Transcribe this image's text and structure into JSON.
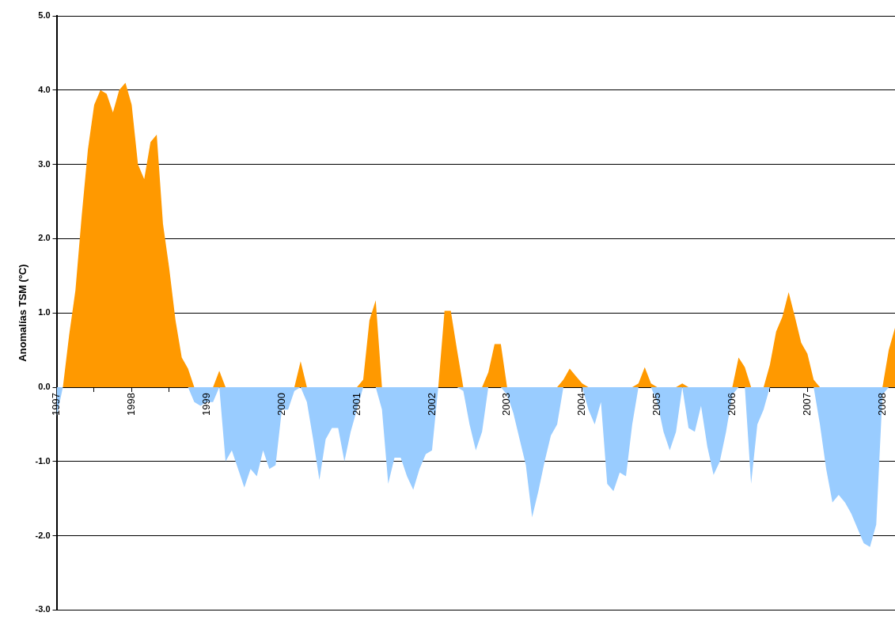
{
  "chart_data": {
    "type": "area",
    "ylabel": "Anomalías TSM (ºC)",
    "x": [
      "1997-01",
      "1997-02",
      "1997-03",
      "1997-04",
      "1997-05",
      "1997-06",
      "1997-07",
      "1997-08",
      "1997-09",
      "1997-10",
      "1997-11",
      "1997-12",
      "1998-01",
      "1998-02",
      "1998-03",
      "1998-04",
      "1998-05",
      "1998-06",
      "1998-07",
      "1998-08",
      "1998-09",
      "1998-10",
      "1998-11",
      "1998-12",
      "1999-01",
      "1999-02",
      "1999-03",
      "1999-04",
      "1999-05",
      "1999-06",
      "1999-07",
      "1999-08",
      "1999-09",
      "1999-10",
      "1999-11",
      "1999-12",
      "2000-01",
      "2000-02",
      "2000-03",
      "2000-04",
      "2000-05",
      "2000-06",
      "2000-07",
      "2000-08",
      "2000-09",
      "2000-10",
      "2000-11",
      "2000-12",
      "2001-01",
      "2001-02",
      "2001-03",
      "2001-04",
      "2001-05",
      "2001-06",
      "2001-07",
      "2001-08",
      "2001-09",
      "2001-10",
      "2001-11",
      "2001-12",
      "2002-01",
      "2002-02",
      "2002-03",
      "2002-04",
      "2002-05",
      "2002-06",
      "2002-07",
      "2002-08",
      "2002-09",
      "2002-10",
      "2002-11",
      "2002-12",
      "2003-01",
      "2003-02",
      "2003-03",
      "2003-04",
      "2003-05",
      "2003-06",
      "2003-07",
      "2003-08",
      "2003-09",
      "2003-10",
      "2003-11",
      "2003-12",
      "2004-01",
      "2004-02",
      "2004-03",
      "2004-04",
      "2004-05",
      "2004-06",
      "2004-07",
      "2004-08",
      "2004-09",
      "2004-10",
      "2004-11",
      "2004-12",
      "2005-01",
      "2005-02",
      "2005-03",
      "2005-04",
      "2005-05",
      "2005-06",
      "2005-07",
      "2005-08",
      "2005-09",
      "2005-10",
      "2005-11",
      "2005-12",
      "2006-01",
      "2006-02",
      "2006-03",
      "2006-04",
      "2006-05",
      "2006-06",
      "2006-07",
      "2006-08",
      "2006-09",
      "2006-10",
      "2006-11",
      "2006-12",
      "2007-01",
      "2007-02",
      "2007-03",
      "2007-04",
      "2007-05",
      "2007-06",
      "2007-07",
      "2007-08",
      "2007-09",
      "2007-10",
      "2007-11",
      "2007-12",
      "2008-01",
      "2008-02",
      "2008-03"
    ],
    "series": [
      {
        "color": "#ff9900",
        "values": [
          0,
          0,
          0.7,
          1.3,
          2.3,
          3.2,
          3.8,
          4.0,
          3.95,
          3.7,
          4.0,
          4.1,
          3.8,
          3.0,
          2.8,
          3.3,
          3.4,
          2.2,
          1.6,
          0.9,
          0.4,
          0.25,
          0,
          0,
          0,
          0,
          0.22,
          0,
          0,
          0,
          0,
          0,
          0,
          0,
          0,
          0,
          0,
          0,
          0,
          0.35,
          0,
          0,
          0,
          0,
          0,
          0,
          0,
          0,
          0,
          0.1,
          0.9,
          1.17,
          0,
          0,
          0,
          0,
          0,
          0,
          0,
          0,
          0,
          0,
          1.03,
          1.03,
          0.5,
          0,
          0,
          0,
          0,
          0.2,
          0.58,
          0.58,
          0,
          0,
          0,
          0,
          0,
          0,
          0,
          0,
          0,
          0.1,
          0.25,
          0.15,
          0.05,
          0,
          0,
          0,
          0,
          0,
          0,
          0,
          0,
          0.05,
          0.27,
          0.05,
          0,
          0,
          0,
          0,
          0.05,
          0,
          0,
          0,
          0,
          0,
          0,
          0,
          0,
          0.4,
          0.27,
          0,
          0,
          0,
          0.3,
          0.75,
          0.95,
          1.28,
          0.95,
          0.6,
          0.45,
          0.1,
          0,
          0,
          0,
          0,
          0,
          0,
          0,
          0,
          0,
          0,
          0,
          0.5,
          0.8
        ]
      },
      {
        "color": "#99ccff",
        "values": [
          -0.4,
          0,
          0,
          0,
          0,
          0,
          0,
          0,
          0,
          0,
          0,
          0,
          0,
          0,
          0,
          0,
          0,
          0,
          0,
          0,
          0,
          0,
          -0.2,
          -0.25,
          -0.2,
          -0.2,
          0,
          -1.0,
          -0.85,
          -1.1,
          -1.35,
          -1.1,
          -1.2,
          -0.85,
          -1.1,
          -1.05,
          -0.3,
          -0.3,
          -0.05,
          0,
          -0.2,
          -0.7,
          -1.25,
          -0.7,
          -0.55,
          -0.55,
          -1.0,
          -0.6,
          -0.3,
          0,
          0,
          0,
          -0.3,
          -1.3,
          -0.95,
          -0.95,
          -1.2,
          -1.38,
          -1.1,
          -0.9,
          -0.85,
          0,
          0,
          0,
          0,
          -0.05,
          -0.5,
          -0.85,
          -0.6,
          0,
          0,
          0,
          -0.1,
          -0.35,
          -0.7,
          -1.05,
          -1.75,
          -1.4,
          -1.0,
          -0.65,
          -0.5,
          0,
          0,
          0,
          0,
          -0.3,
          -0.5,
          -0.2,
          -1.3,
          -1.4,
          -1.15,
          -1.2,
          -0.5,
          0,
          0,
          0,
          -0.2,
          -0.6,
          -0.85,
          -0.6,
          0,
          -0.55,
          -0.6,
          -0.25,
          -0.8,
          -1.18,
          -1.0,
          -0.6,
          -0.1,
          0,
          0,
          -1.3,
          -0.5,
          -0.3,
          0,
          0,
          0,
          0,
          0,
          0,
          0,
          0,
          -0.5,
          -1.1,
          -1.55,
          -1.45,
          -1.55,
          -1.7,
          -1.9,
          -2.1,
          -2.15,
          -1.85,
          -0.1,
          0,
          0
        ]
      }
    ],
    "xlim": [
      "1997-01",
      "2008-03"
    ],
    "xticks": [
      "1997",
      {
        "value": "1997-07",
        "label": null
      },
      "1998",
      {
        "value": "1998-07",
        "label": null
      },
      "1999",
      {
        "value": "1999-07",
        "label": null
      },
      "2000",
      {
        "value": "2000-07",
        "label": null
      },
      "2001",
      {
        "value": "2001-07",
        "label": null
      },
      "2002",
      {
        "value": "2002-07",
        "label": null
      },
      "2003",
      {
        "value": "2003-07",
        "label": null
      },
      "2004",
      {
        "value": "2004-07",
        "label": null
      },
      "2005",
      {
        "value": "2005-07",
        "label": null
      },
      "2006",
      {
        "value": "2006-07",
        "label": null
      },
      "2007",
      {
        "value": "2007-07",
        "label": null
      },
      "2008"
    ],
    "ylim": [
      -3,
      5
    ],
    "yticks": [
      {
        "value": -3,
        "label": "-3.0"
      },
      {
        "value": -2,
        "label": "-2.0"
      },
      {
        "value": -1,
        "label": "-1.0"
      },
      {
        "value": 0,
        "label": "0.0"
      },
      {
        "value": 1,
        "label": "1.0"
      },
      {
        "value": 2,
        "label": "2.0"
      },
      {
        "value": 3,
        "label": "3.0"
      },
      {
        "value": 4,
        "label": "4.0"
      },
      {
        "value": 5,
        "label": "5.0"
      }
    ],
    "grid": "y"
  }
}
